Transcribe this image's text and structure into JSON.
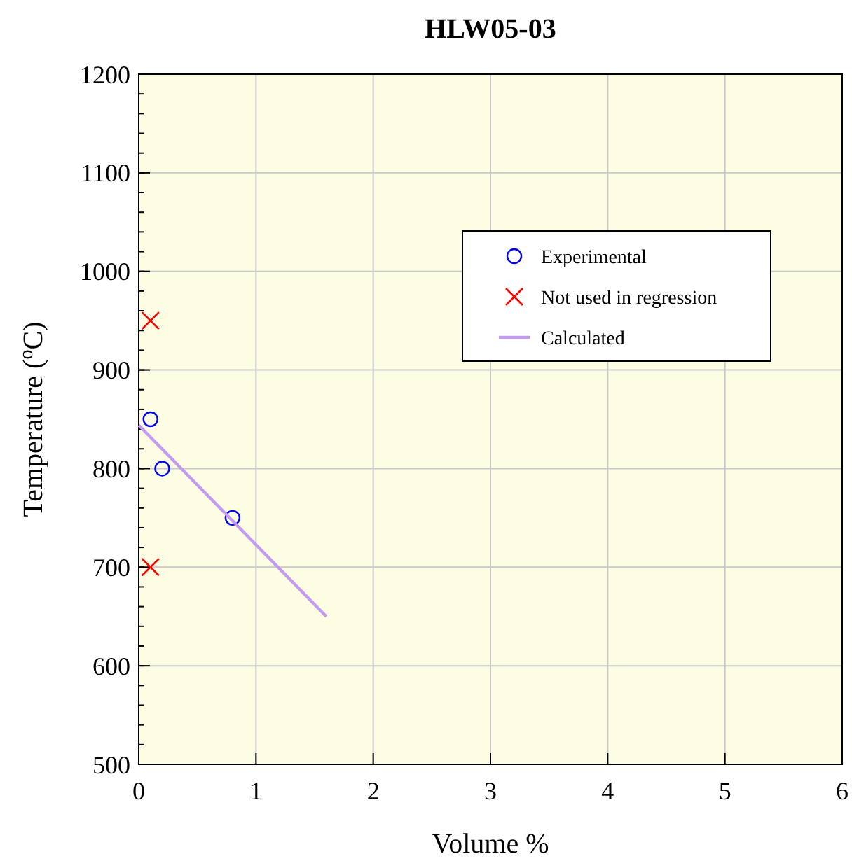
{
  "chart_data": {
    "type": "scatter",
    "title": "HLW05-03",
    "xlabel": "Volume %",
    "ylabel": "Temperature  ($^{o}$C)",
    "xlim": [
      0,
      6
    ],
    "xticks": [
      0,
      1,
      2,
      3,
      4,
      5,
      6
    ],
    "ylim": [
      500,
      1200
    ],
    "yticks": [
      500,
      600,
      700,
      800,
      900,
      1000,
      1100,
      1200
    ],
    "grid": true,
    "legend": "right",
    "series": [
      {
        "name": "Experimental",
        "color": "#0000ff",
        "marker": "circle",
        "x": [
          0.1,
          0.2,
          0.8
        ],
        "values": [
          850,
          800,
          750
        ]
      },
      {
        "name": "Not used in regression",
        "color": "#ff0000",
        "marker": "cross",
        "x": [
          0.1,
          0.1
        ],
        "values": [
          950,
          700
        ]
      },
      {
        "name": "Calculated",
        "type": "line",
        "color": "#c39bf0",
        "marker": "none",
        "x": [
          0,
          1.6
        ],
        "values": [
          844,
          650
        ]
      }
    ]
  }
}
